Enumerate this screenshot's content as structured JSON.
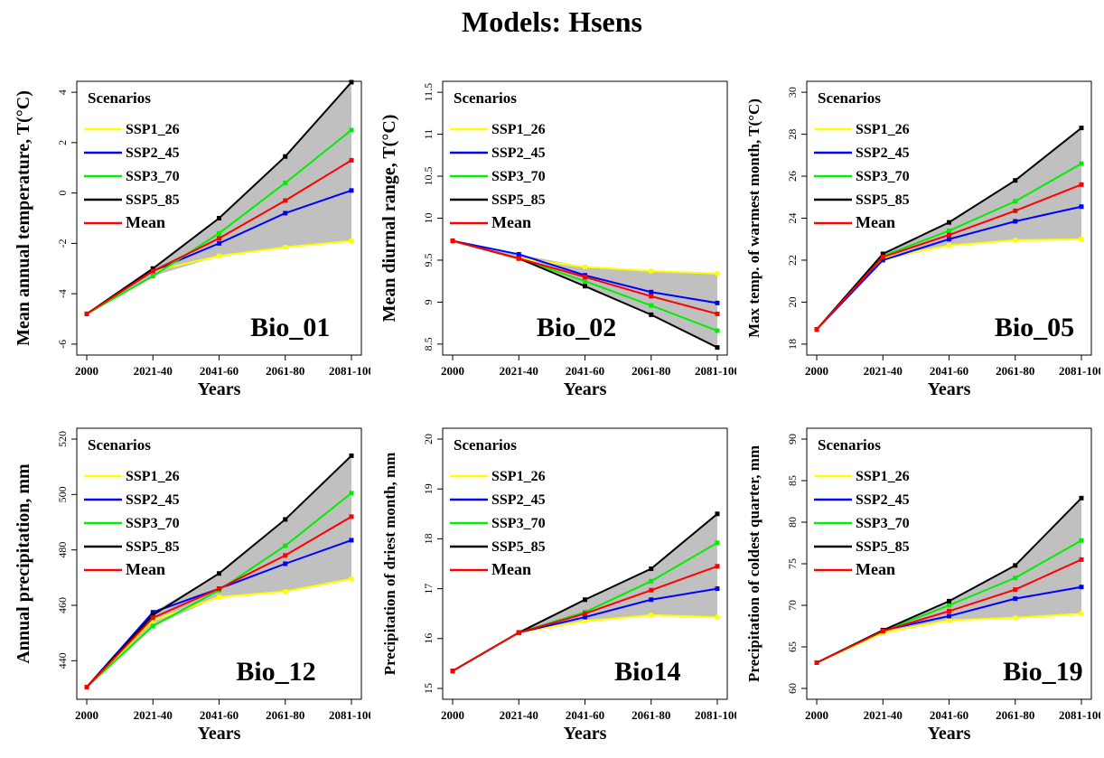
{
  "title": "Models: Hsens",
  "chart_data": [
    {
      "type": "line",
      "label": "Bio_01",
      "categories": [
        "2000",
        "2021-40",
        "2041-60",
        "2061-80",
        "2081-100"
      ],
      "xlabel": "Years",
      "ylabel": "Mean annual temperature, T(°C)",
      "ylim": [
        -6,
        4
      ],
      "yticks": [
        -6,
        -4,
        -2,
        0,
        2,
        4
      ],
      "legend_title": "Scenarios",
      "series": [
        {
          "name": "SSP1_26",
          "color": "#ffff00",
          "values": [
            -4.8,
            -3.1,
            -2.5,
            -2.15,
            -1.9
          ]
        },
        {
          "name": "SSP2_45",
          "color": "#0000ff",
          "values": [
            -4.8,
            -3.1,
            -2.0,
            -0.8,
            0.1
          ]
        },
        {
          "name": "SSP3_70",
          "color": "#00ee00",
          "values": [
            -4.8,
            -3.3,
            -1.6,
            0.4,
            2.5
          ]
        },
        {
          "name": "SSP5_85",
          "color": "#000000",
          "values": [
            -4.8,
            -3.0,
            -1.0,
            1.45,
            4.4
          ]
        },
        {
          "name": "Mean",
          "color": "#ff0000",
          "values": [
            -4.8,
            -3.1,
            -1.8,
            -0.3,
            1.3
          ]
        }
      ]
    },
    {
      "type": "line",
      "label": "Bio_02",
      "categories": [
        "2000",
        "2021-40",
        "2041-60",
        "2061-80",
        "2081-100"
      ],
      "xlabel": "Years",
      "ylabel": "Mean diurnal range, T(°C)",
      "ylim": [
        8.5,
        11.5
      ],
      "yticks": [
        8.5,
        9.0,
        9.5,
        10.0,
        10.5,
        11.0,
        11.5
      ],
      "legend_title": "Scenarios",
      "series": [
        {
          "name": "SSP1_26",
          "color": "#ffff00",
          "values": [
            9.73,
            9.52,
            9.42,
            9.37,
            9.34
          ]
        },
        {
          "name": "SSP2_45",
          "color": "#0000ff",
          "values": [
            9.73,
            9.57,
            9.32,
            9.12,
            8.99
          ]
        },
        {
          "name": "SSP3_70",
          "color": "#00ee00",
          "values": [
            9.73,
            9.52,
            9.25,
            8.96,
            8.66
          ]
        },
        {
          "name": "SSP5_85",
          "color": "#000000",
          "values": [
            9.73,
            9.52,
            9.19,
            8.85,
            8.46
          ]
        },
        {
          "name": "Mean",
          "color": "#ff0000",
          "values": [
            9.73,
            9.52,
            9.3,
            9.07,
            8.86
          ]
        }
      ]
    },
    {
      "type": "line",
      "label": "Bio_05",
      "categories": [
        "2000",
        "2021-40",
        "2041-60",
        "2061-80",
        "2081-100"
      ],
      "xlabel": "Years",
      "ylabel": "Max temp. of warmest month, T(°C)",
      "ylim": [
        18,
        30
      ],
      "yticks": [
        18,
        20,
        22,
        24,
        26,
        28,
        30
      ],
      "legend_title": "Scenarios",
      "series": [
        {
          "name": "SSP1_26",
          "color": "#ffff00",
          "values": [
            18.7,
            22.1,
            22.7,
            22.95,
            23.0
          ]
        },
        {
          "name": "SSP2_45",
          "color": "#0000ff",
          "values": [
            18.7,
            22.0,
            23.0,
            23.85,
            24.55
          ]
        },
        {
          "name": "SSP3_70",
          "color": "#00ee00",
          "values": [
            18.7,
            22.2,
            23.4,
            24.8,
            26.6
          ]
        },
        {
          "name": "SSP5_85",
          "color": "#000000",
          "values": [
            18.7,
            22.3,
            23.8,
            25.8,
            28.3
          ]
        },
        {
          "name": "Mean",
          "color": "#ff0000",
          "values": [
            18.7,
            22.15,
            23.2,
            24.35,
            25.6
          ]
        }
      ]
    },
    {
      "type": "line",
      "label": "Bio_12",
      "categories": [
        "2000",
        "2021-40",
        "2041-60",
        "2061-80",
        "2081-100"
      ],
      "xlabel": "Years",
      "ylabel": "Annual precipitation, mm",
      "ylim": [
        430,
        520
      ],
      "yticks": [
        440,
        460,
        480,
        500,
        520
      ],
      "legend_title": "Scenarios",
      "series": [
        {
          "name": "SSP1_26",
          "color": "#ffff00",
          "values": [
            430.5,
            454.5,
            463.0,
            465.0,
            469.5
          ]
        },
        {
          "name": "SSP2_45",
          "color": "#0000ff",
          "values": [
            430.5,
            457.5,
            466.0,
            475.0,
            483.5
          ]
        },
        {
          "name": "SSP3_70",
          "color": "#00ee00",
          "values": [
            430.5,
            452.5,
            465.5,
            481.5,
            500.5
          ]
        },
        {
          "name": "SSP5_85",
          "color": "#000000",
          "values": [
            430.5,
            456.5,
            471.5,
            491.0,
            514.0
          ]
        },
        {
          "name": "Mean",
          "color": "#ff0000",
          "values": [
            430.5,
            455.5,
            466.0,
            478.0,
            492.0
          ]
        }
      ]
    },
    {
      "type": "line",
      "label": "Bio14",
      "categories": [
        "2000",
        "2021-40",
        "2041-60",
        "2061-80",
        "2081-100"
      ],
      "xlabel": "Years",
      "ylabel": "Precipitation of driest month, mm",
      "ylim": [
        15,
        20
      ],
      "yticks": [
        15,
        16,
        17,
        18,
        19,
        20
      ],
      "legend_title": "Scenarios",
      "series": [
        {
          "name": "SSP1_26",
          "color": "#ffff00",
          "values": [
            15.35,
            16.12,
            16.35,
            16.47,
            16.43
          ]
        },
        {
          "name": "SSP2_45",
          "color": "#0000ff",
          "values": [
            15.35,
            16.12,
            16.43,
            16.78,
            17.0
          ]
        },
        {
          "name": "SSP3_70",
          "color": "#00ee00",
          "values": [
            15.35,
            16.12,
            16.53,
            17.15,
            17.92
          ]
        },
        {
          "name": "SSP5_85",
          "color": "#000000",
          "values": [
            15.35,
            16.12,
            16.78,
            17.4,
            18.5
          ]
        },
        {
          "name": "Mean",
          "color": "#ff0000",
          "values": [
            15.35,
            16.12,
            16.5,
            16.97,
            17.45
          ]
        }
      ]
    },
    {
      "type": "line",
      "label": "Bio_19",
      "categories": [
        "2000",
        "2021-40",
        "2041-60",
        "2061-80",
        "2081-100"
      ],
      "xlabel": "Years",
      "ylabel": "Precipitation of coldest quarter, mm",
      "ylim": [
        60,
        90
      ],
      "yticks": [
        60,
        65,
        70,
        75,
        80,
        85,
        90
      ],
      "legend_title": "Scenarios",
      "series": [
        {
          "name": "SSP1_26",
          "color": "#ffff00",
          "values": [
            63.1,
            66.7,
            68.2,
            68.5,
            69.0
          ]
        },
        {
          "name": "SSP2_45",
          "color": "#0000ff",
          "values": [
            63.1,
            67.0,
            68.7,
            70.8,
            72.2
          ]
        },
        {
          "name": "SSP3_70",
          "color": "#00ee00",
          "values": [
            63.1,
            66.9,
            70.0,
            73.3,
            77.8
          ]
        },
        {
          "name": "SSP5_85",
          "color": "#000000",
          "values": [
            63.1,
            67.0,
            70.5,
            74.8,
            82.9
          ]
        },
        {
          "name": "Mean",
          "color": "#ff0000",
          "values": [
            63.1,
            66.9,
            69.3,
            71.9,
            75.5
          ]
        }
      ]
    }
  ]
}
